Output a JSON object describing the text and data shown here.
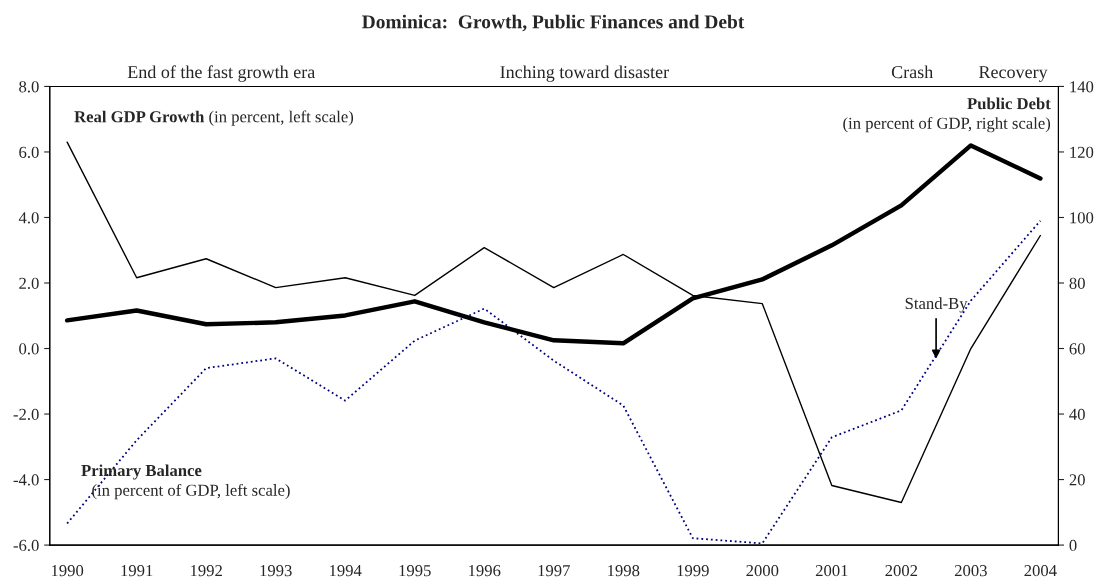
{
  "chart_data": {
    "type": "line",
    "title": "Dominica:  Growth, Public Finances and Debt",
    "x": [
      1990,
      1991,
      1992,
      1993,
      1994,
      1995,
      1996,
      1997,
      1998,
      1999,
      2000,
      2001,
      2002,
      2003,
      2004
    ],
    "xlim": [
      1989.75,
      2004.26
    ],
    "xticks": [
      1990,
      1991,
      1992,
      1993,
      1994,
      1995,
      1996,
      1997,
      1998,
      1999,
      2000,
      2001,
      2002,
      2003,
      2004
    ],
    "ylim": [
      -6,
      8
    ],
    "yticks": [
      {
        "value": -6,
        "label": "-6.0"
      },
      {
        "value": -4,
        "label": "-4.0"
      },
      {
        "value": -2,
        "label": "-2.0"
      },
      {
        "value": 0,
        "label": "0.0"
      },
      {
        "value": 2,
        "label": "2.0"
      },
      {
        "value": 4,
        "label": "4.0"
      },
      {
        "value": 6,
        "label": "6.0"
      },
      {
        "value": 8,
        "label": "8.0"
      }
    ],
    "y2lim": [
      0,
      140
    ],
    "y2ticks": [
      0,
      20,
      40,
      60,
      80,
      100,
      120,
      140
    ],
    "grid": false,
    "legend": false,
    "marker": "none",
    "series": [
      {
        "name": "Real GDP Growth",
        "color": "#000000",
        "line_style": "solid",
        "values": [
          6.3,
          2.16,
          2.74,
          1.86,
          2.16,
          1.62,
          3.08,
          1.86,
          2.87,
          1.62,
          1.37,
          -4.18,
          -4.7,
          0.0,
          3.45
        ]
      },
      {
        "name": "Public Debt",
        "color": "#000000",
        "line_style": "solid",
        "axis": "y2",
        "values": [
          68.6,
          71.6,
          67.4,
          68.0,
          70.1,
          74.4,
          68.0,
          62.5,
          61.6,
          75.3,
          81.1,
          91.5,
          103.7,
          122,
          111.9
        ]
      },
      {
        "name": "Primary Balance",
        "color": "#000080",
        "line_style": "dotted",
        "values": [
          -5.34,
          -2.8,
          -0.6,
          -0.3,
          -1.59,
          0.24,
          1.22,
          -0.37,
          -1.74,
          -5.79,
          -5.95,
          -2.71,
          -1.89,
          1.46,
          3.9
        ]
      }
    ],
    "annotations": [
      "End of the fast growth era",
      "Inching toward disaster",
      "Crash",
      "Recovery",
      "(in percent, left scale)",
      "(in percent of GDP, right scale)",
      "(in percent of GDP, left scale)",
      {
        "text": "Stand-By",
        "x": 2002.5,
        "y": -0.4
      }
    ]
  }
}
